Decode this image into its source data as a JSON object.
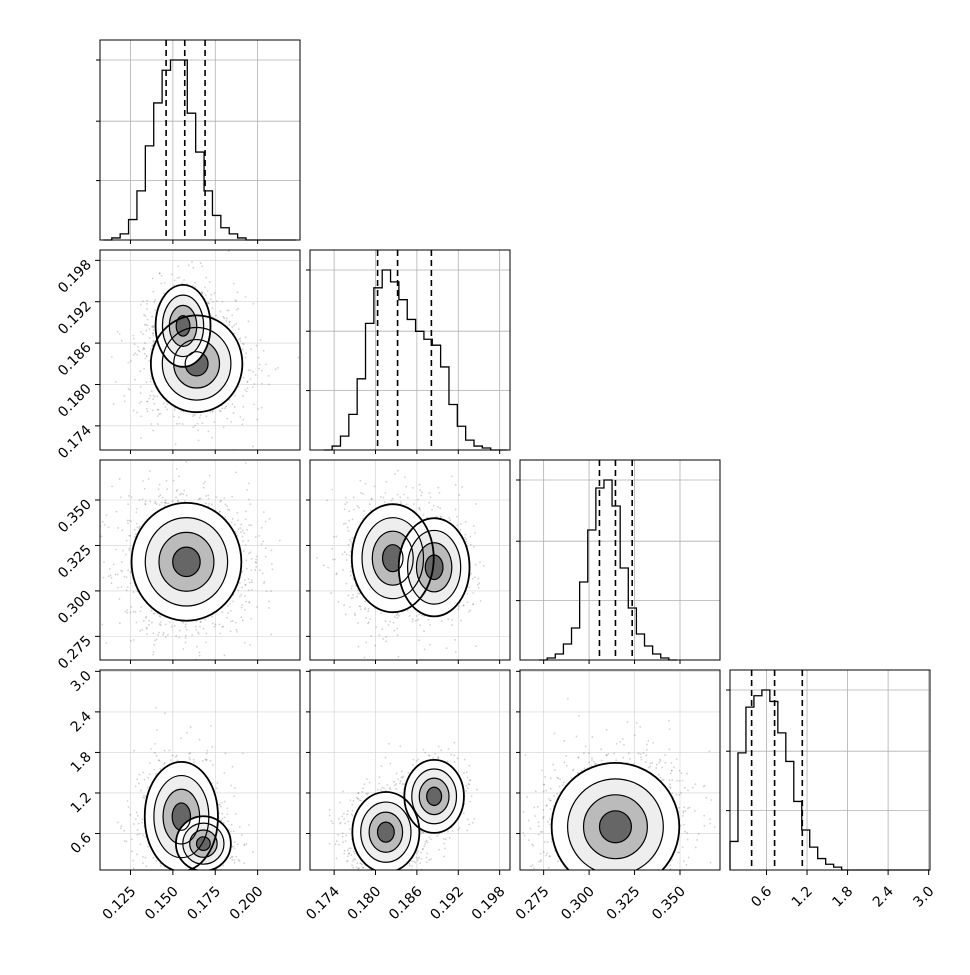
{
  "chart_data": {
    "type": "corner",
    "n_params": 4,
    "grid": true,
    "quantile_lines": "dashed",
    "parameters": [
      {
        "range": [
          0.107,
          0.225
        ],
        "ticks": [
          "0.125",
          "0.150",
          "0.175",
          "0.200"
        ],
        "tick_values": [
          0.125,
          0.15,
          0.175,
          0.2
        ],
        "quantiles": [
          0.146,
          0.157,
          0.169
        ],
        "histogram": {
          "bin_width": 0.00495,
          "bin_edges_start": 0.109,
          "counts": [
            0,
            1,
            3,
            10,
            24,
            46,
            67,
            83,
            88,
            88,
            62,
            43,
            24,
            12,
            6,
            3,
            1,
            0,
            0,
            0,
            0,
            0,
            0
          ]
        }
      },
      {
        "range": [
          0.1705,
          0.1995
        ],
        "ticks": [
          "0.174",
          "0.180",
          "0.186",
          "0.192",
          "0.198"
        ],
        "tick_values": [
          0.174,
          0.18,
          0.186,
          0.192,
          0.198
        ],
        "quantiles": [
          0.1803,
          0.1832,
          0.1881
        ],
        "histogram": {
          "bin_width": 0.00121,
          "bin_edges_start": 0.1725,
          "counts": [
            0,
            2,
            7,
            18,
            36,
            64,
            82,
            91,
            85,
            76,
            66,
            60,
            56,
            53,
            42,
            23,
            12,
            5,
            2,
            1,
            0,
            0
          ]
        }
      },
      {
        "range": [
          0.262,
          0.372
        ],
        "ticks": [
          "0.275",
          "0.300",
          "0.325",
          "0.350"
        ],
        "tick_values": [
          0.275,
          0.3,
          0.325,
          0.35
        ],
        "quantiles": [
          0.3057,
          0.3145,
          0.3237
        ],
        "histogram": {
          "bin_width": 0.00446,
          "bin_edges_start": 0.2725,
          "counts": [
            0,
            1,
            3,
            8,
            16,
            39,
            65,
            86,
            90,
            77,
            46,
            26,
            13,
            7,
            3,
            1,
            0
          ]
        }
      },
      {
        "range": [
          0.06,
          3.02
        ],
        "ticks": [
          "0.6",
          "1.2",
          "1.8",
          "2.4",
          "3.0"
        ],
        "tick_values": [
          0.6,
          1.2,
          1.8,
          2.4,
          3.0
        ],
        "quantiles": [
          0.38,
          0.72,
          1.13
        ],
        "histogram": {
          "bin_width": 0.118,
          "bin_edges_start": 0.06,
          "counts": [
            10,
            41,
            57,
            61,
            63,
            59,
            48,
            38,
            24,
            14,
            8,
            4,
            2,
            1,
            0,
            0,
            0,
            0,
            0,
            0,
            0,
            0,
            0,
            0,
            0
          ]
        }
      }
    ],
    "pairs": [
      {
        "x": 0,
        "y": 1,
        "modes": [
          {
            "mx": 0.164,
            "my": 0.183,
            "sx": 0.01,
            "sy": 0.0026,
            "w": 0.7
          },
          {
            "mx": 0.156,
            "my": 0.1885,
            "sx": 0.006,
            "sy": 0.0022,
            "w": 0.3
          }
        ],
        "corr": 0.1
      },
      {
        "x": 0,
        "y": 2,
        "modes": [
          {
            "mx": 0.158,
            "my": 0.316,
            "sx": 0.012,
            "sy": 0.012,
            "w": 1.0
          }
        ],
        "corr": 0.05
      },
      {
        "x": 1,
        "y": 2,
        "modes": [
          {
            "mx": 0.1825,
            "my": 0.318,
            "sx": 0.0022,
            "sy": 0.011,
            "w": 0.65
          },
          {
            "mx": 0.1885,
            "my": 0.313,
            "sx": 0.0019,
            "sy": 0.01,
            "w": 0.35
          }
        ],
        "corr": 0.0
      },
      {
        "x": 0,
        "y": 3,
        "modes": [
          {
            "mx": 0.155,
            "my": 0.85,
            "sx": 0.008,
            "sy": 0.3,
            "w": 0.6
          },
          {
            "mx": 0.168,
            "my": 0.45,
            "sx": 0.006,
            "sy": 0.15,
            "w": 0.4
          }
        ],
        "corr": -0.2
      },
      {
        "x": 1,
        "y": 3,
        "modes": [
          {
            "mx": 0.1815,
            "my": 0.62,
            "sx": 0.0018,
            "sy": 0.22,
            "w": 0.7
          },
          {
            "mx": 0.1885,
            "my": 1.15,
            "sx": 0.0016,
            "sy": 0.2,
            "w": 0.3
          }
        ],
        "corr": 0.0
      },
      {
        "x": 2,
        "y": 3,
        "modes": [
          {
            "mx": 0.3145,
            "my": 0.7,
            "sx": 0.013,
            "sy": 0.35,
            "w": 1.0
          }
        ],
        "corr": 0.0
      }
    ],
    "contour_color": "#000000",
    "scatter_color": "#000000",
    "density_colormap": "greys"
  }
}
